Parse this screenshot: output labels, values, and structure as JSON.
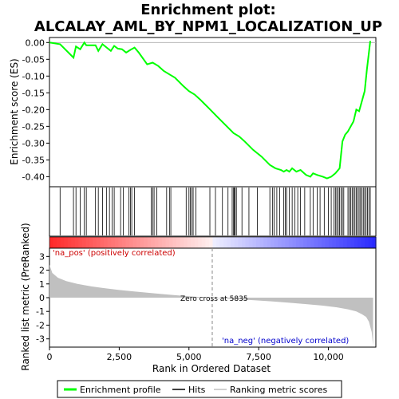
{
  "chart_data": {
    "type": "line",
    "title_line1": "Enrichment plot:",
    "title_line2": "ALCALAY_AML_BY_NPM1_LOCALIZATION_UP",
    "es_ylabel": "Enrichment score (ES)",
    "metric_ylabel": "Ranked list metric (PreRanked)",
    "xlabel": "Rank in Ordered Dataset",
    "xlim": [
      0,
      11700
    ],
    "x_ticks": [
      0,
      2500,
      5000,
      7500,
      10000
    ],
    "x_tick_labels": [
      "0",
      "2,500",
      "5,000",
      "7,500",
      "10,000"
    ],
    "es_ylim": [
      -0.43,
      0.015
    ],
    "es_ticks": [
      0.0,
      -0.05,
      -0.1,
      -0.15,
      -0.2,
      -0.25,
      -0.3,
      -0.35,
      -0.4
    ],
    "es_tick_labels": [
      "0.00",
      "-0.05",
      "-0.10",
      "-0.15",
      "-0.20",
      "-0.25",
      "-0.30",
      "-0.35",
      "-0.40"
    ],
    "metric_ylim": [
      -3.6,
      3.6
    ],
    "metric_ticks": [
      3,
      2,
      1,
      0,
      -1,
      -2,
      -3
    ],
    "metric_tick_labels": [
      "3",
      "2",
      "1",
      "0",
      "-1",
      "-2",
      "-3"
    ],
    "series": [
      {
        "name": "Enrichment profile",
        "color": "#00ff00",
        "x": [
          0,
          380,
          860,
          950,
          1100,
          1250,
          1320,
          1650,
          1750,
          1900,
          2050,
          2200,
          2320,
          2450,
          2600,
          2750,
          2900,
          3050,
          3200,
          3500,
          3700,
          3900,
          4100,
          4300,
          4500,
          4800,
          5000,
          5200,
          5400,
          5700,
          6000,
          6300,
          6600,
          6800,
          7000,
          7300,
          7600,
          7900,
          8100,
          8300,
          8400,
          8500,
          8600,
          8700,
          8850,
          9000,
          9200,
          9350,
          9450,
          9600,
          9800,
          9950,
          10100,
          10250,
          10400,
          10500,
          10600,
          10700,
          10800,
          10900,
          11000,
          11100,
          11200,
          11300,
          11380,
          11450,
          11500
        ],
        "y": [
          0.0,
          -0.005,
          -0.045,
          -0.012,
          -0.02,
          -0.0,
          -0.008,
          -0.008,
          -0.025,
          -0.005,
          -0.015,
          -0.025,
          -0.01,
          -0.018,
          -0.02,
          -0.03,
          -0.022,
          -0.015,
          -0.03,
          -0.065,
          -0.06,
          -0.07,
          -0.085,
          -0.095,
          -0.105,
          -0.13,
          -0.145,
          -0.155,
          -0.17,
          -0.195,
          -0.22,
          -0.245,
          -0.27,
          -0.28,
          -0.295,
          -0.32,
          -0.34,
          -0.365,
          -0.375,
          -0.38,
          -0.385,
          -0.38,
          -0.385,
          -0.375,
          -0.385,
          -0.38,
          -0.395,
          -0.4,
          -0.39,
          -0.395,
          -0.4,
          -0.405,
          -0.4,
          -0.39,
          -0.375,
          -0.295,
          -0.275,
          -0.265,
          -0.25,
          -0.235,
          -0.2,
          -0.205,
          -0.175,
          -0.145,
          -0.08,
          -0.03,
          0.005
        ]
      }
    ],
    "hits_x": [
      380,
      860,
      950,
      1100,
      1250,
      1320,
      1650,
      1750,
      1900,
      2050,
      2150,
      2250,
      2320,
      2550,
      2650,
      2850,
      2900,
      2950,
      3050,
      3650,
      3700,
      3750,
      3850,
      4200,
      4300,
      4350,
      4900,
      5000,
      5050,
      5100,
      5150,
      5250,
      5750,
      5950,
      6200,
      6400,
      6550,
      6600,
      6620,
      6650,
      6700,
      6900,
      7150,
      7450,
      7900,
      8000,
      8050,
      8150,
      8250,
      8400,
      8450,
      8500,
      8600,
      8700,
      8800,
      8900,
      9000,
      9150,
      9350,
      9450,
      9600,
      9700,
      9850,
      10000,
      10100,
      10200,
      10250,
      10300,
      10350,
      10400,
      10450,
      10500,
      10550,
      10700,
      10750,
      10800,
      10850,
      10900,
      10950,
      11000,
      11050,
      11100,
      11150,
      11200,
      11250,
      11300,
      11350,
      11400,
      11450,
      11500
    ],
    "zero_cross_label": "Zero cross at 5835",
    "zero_cross_x": 5835,
    "pos_label": "'na_pos' (positively correlated)",
    "neg_label": "'na_neg' (negatively correlated)",
    "metric_profile": {
      "x": [
        0,
        100,
        300,
        600,
        1000,
        1500,
        2000,
        2500,
        3000,
        3500,
        4000,
        4500,
        5000,
        5500,
        5835,
        6200,
        6800,
        7400,
        8000,
        8600,
        9200,
        9800,
        10300,
        10700,
        11000,
        11200,
        11350,
        11450,
        11550,
        11600
      ],
      "y": [
        2.4,
        1.8,
        1.45,
        1.2,
        1.0,
        0.82,
        0.68,
        0.56,
        0.46,
        0.36,
        0.27,
        0.18,
        0.1,
        0.03,
        0.0,
        -0.05,
        -0.12,
        -0.2,
        -0.28,
        -0.37,
        -0.47,
        -0.58,
        -0.7,
        -0.85,
        -1.0,
        -1.2,
        -1.4,
        -1.75,
        -2.5,
        -3.5
      ]
    },
    "legend": {
      "placement": "bottom",
      "items": [
        "Enrichment profile",
        "Hits",
        "Ranking metric scores"
      ],
      "colors": [
        "#00ff00",
        "#000000",
        "#c0c0c0"
      ]
    }
  }
}
